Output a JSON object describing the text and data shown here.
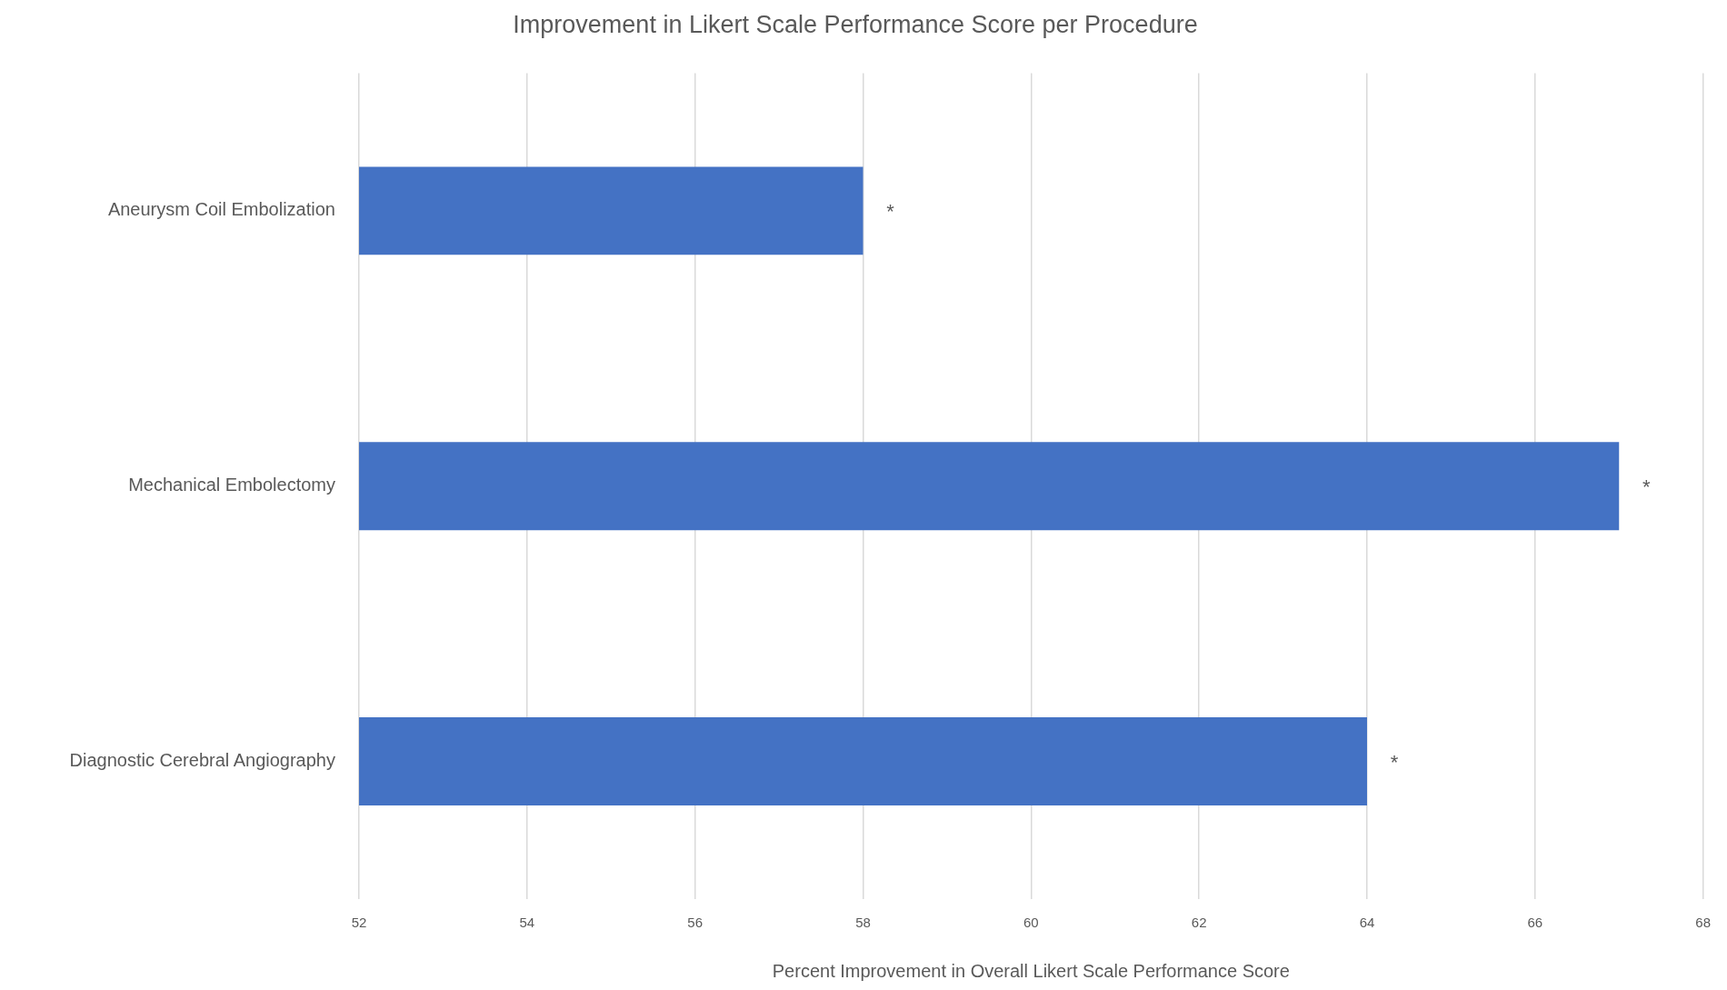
{
  "chart_data": {
    "type": "bar",
    "orientation": "horizontal",
    "title": "Improvement in Likert Scale Performance Score per Procedure",
    "xlabel": "Percent Improvement in Overall Likert Scale Performance Score",
    "categories": [
      "Aneurysm Coil Embolization",
      "Mechanical Embolectomy",
      "Diagnostic Cerebral Angiography"
    ],
    "values": [
      58,
      67,
      64
    ],
    "color": "#4472c4",
    "xlim": [
      52,
      68
    ],
    "xticks": [
      52,
      54,
      56,
      58,
      60,
      62,
      64,
      66,
      68
    ],
    "grid": "x",
    "legend": false,
    "annotations": [
      {
        "text": "*",
        "x": 58,
        "y": "Aneurysm Coil Embolization"
      },
      {
        "text": "*",
        "x": 67,
        "y": "Mechanical Embolectomy"
      },
      {
        "text": "*",
        "x": 64,
        "y": "Diagnostic Cerebral Angiography"
      }
    ]
  }
}
